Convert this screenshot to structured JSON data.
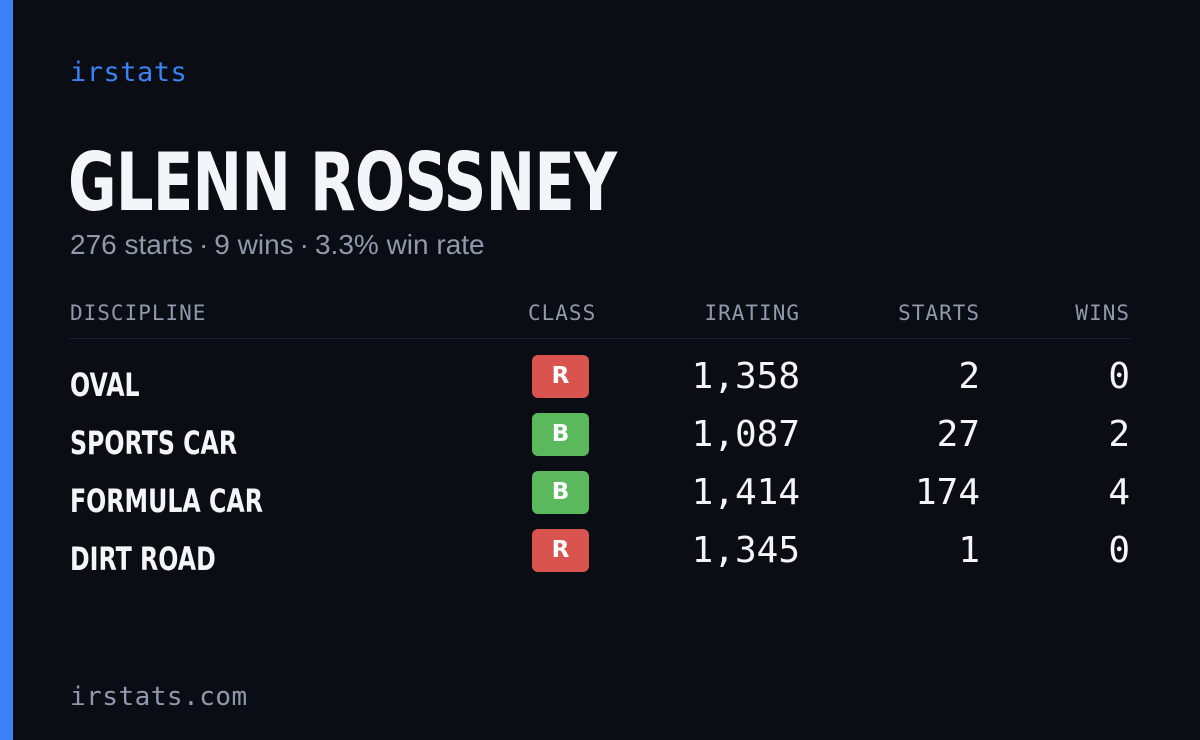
{
  "brand": "irstats",
  "driver": {
    "name": "GLENN ROSSNEY",
    "starts_text": "276 starts",
    "wins_text": "9 wins",
    "win_rate_text": "3.3% win rate",
    "separator": "·"
  },
  "table": {
    "headers": {
      "discipline": "DISCIPLINE",
      "class": "CLASS",
      "irating": "IRATING",
      "starts": "STARTS",
      "wins": "WINS"
    },
    "rows": [
      {
        "discipline": "OVAL",
        "class": "R",
        "class_color": "#d9534f",
        "irating": "1,358",
        "starts": "2",
        "wins": "0"
      },
      {
        "discipline": "SPORTS CAR",
        "class": "B",
        "class_color": "#5cb85c",
        "irating": "1,087",
        "starts": "27",
        "wins": "2"
      },
      {
        "discipline": "FORMULA CAR",
        "class": "B",
        "class_color": "#5cb85c",
        "irating": "1,414",
        "starts": "174",
        "wins": "4"
      },
      {
        "discipline": "DIRT ROAD",
        "class": "R",
        "class_color": "#d9534f",
        "irating": "1,345",
        "starts": "1",
        "wins": "0"
      }
    ]
  },
  "footer": {
    "url": "irstats.com"
  },
  "colors": {
    "background": "#0a0d14",
    "accent": "#3b82f6",
    "text": "#f3f5f9",
    "muted": "#8f99ab"
  }
}
